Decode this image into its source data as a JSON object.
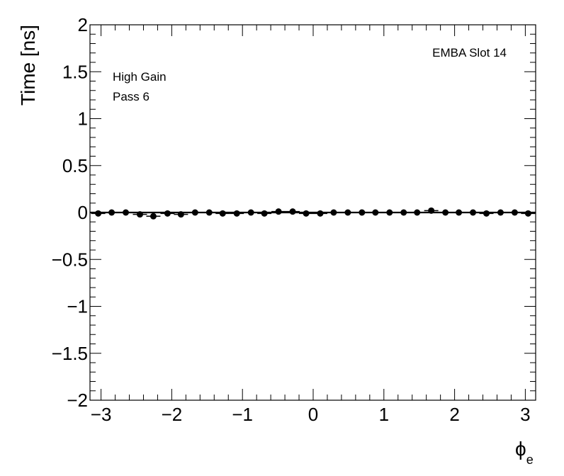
{
  "chart_data": {
    "type": "scatter",
    "title": "",
    "xlabel": "ϕ",
    "xlabel_subscript": "e",
    "ylabel": "Time [ns]",
    "xlim": [
      -3.14,
      3.14
    ],
    "ylim": [
      -2,
      2
    ],
    "xticks": [
      -3,
      -2,
      -1,
      0,
      1,
      2,
      3
    ],
    "xtick_labels": [
      "−3",
      "−2",
      "−1",
      "0",
      "1",
      "2",
      "3"
    ],
    "yticks": [
      -2,
      -1.5,
      -1,
      -0.5,
      0,
      0.5,
      1,
      1.5,
      2
    ],
    "ytick_labels": [
      "−2",
      "−1.5",
      "−1",
      "−0.5",
      "0",
      "0.5",
      "1",
      "1.5",
      "2"
    ],
    "grid": false,
    "legend": "none",
    "annotations": [
      "EMBA Slot 14",
      "High Gain",
      "Pass 6"
    ],
    "fit_line": {
      "y": 0
    },
    "series": [
      {
        "x": [
          -3.04,
          -2.85,
          -2.65,
          -2.45,
          -2.26,
          -2.06,
          -1.87,
          -1.67,
          -1.47,
          -1.28,
          -1.08,
          -0.88,
          -0.69,
          -0.49,
          -0.29,
          -0.1,
          0.1,
          0.29,
          0.49,
          0.69,
          0.88,
          1.08,
          1.28,
          1.47,
          1.67,
          1.87,
          2.06,
          2.26,
          2.45,
          2.65,
          2.85,
          3.04
        ],
        "y": [
          -0.01,
          0.0,
          0.0,
          -0.02,
          -0.04,
          -0.01,
          -0.02,
          0.0,
          0.0,
          -0.01,
          -0.01,
          0.0,
          -0.01,
          0.01,
          0.01,
          -0.01,
          -0.01,
          0.0,
          0.0,
          0.0,
          0.0,
          0.0,
          0.0,
          0.0,
          0.02,
          0.0,
          0.0,
          0.0,
          -0.01,
          0.0,
          0.0,
          -0.01
        ],
        "color": "#000000"
      }
    ]
  }
}
